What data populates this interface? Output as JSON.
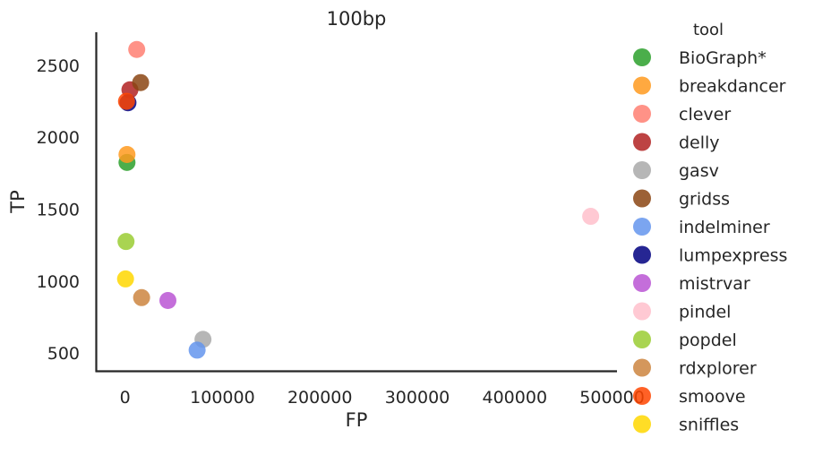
{
  "chart_data": {
    "type": "scatter",
    "title": "100bp",
    "xlabel": "FP",
    "ylabel": "TP",
    "xlim": [
      -30000,
      505000
    ],
    "ylim": [
      370,
      2730
    ],
    "xticks": [
      0,
      100000,
      200000,
      300000,
      400000,
      500000
    ],
    "xtick_labels": [
      "0",
      "100000",
      "200000",
      "300000",
      "400000",
      "500000"
    ],
    "yticks": [
      500,
      1000,
      1500,
      2000,
      2500
    ],
    "ytick_labels": [
      "500",
      "1000",
      "1500",
      "2000",
      "2500"
    ],
    "grid": false,
    "legend": {
      "title": "tool",
      "placement": "right, outside plot",
      "entries": [
        "BioGraph*",
        "breakdancer",
        "clever",
        "delly",
        "gasv",
        "gridss",
        "indelminer",
        "lumpexpress",
        "mistrvar",
        "pindel",
        "popdel",
        "rdxplorer",
        "smoove",
        "sniffles"
      ]
    },
    "series": [
      {
        "name": "BioGraph*",
        "color": "#2ca02c",
        "points": [
          {
            "x": 2000,
            "y": 1825
          }
        ]
      },
      {
        "name": "breakdancer",
        "color": "#ff9a1f",
        "points": [
          {
            "x": 2000,
            "y": 1880
          }
        ]
      },
      {
        "name": "clever",
        "color": "#ff7f72",
        "points": [
          {
            "x": 12000,
            "y": 2610
          }
        ]
      },
      {
        "name": "delly",
        "color": "#b22222",
        "points": [
          {
            "x": 5000,
            "y": 2330
          }
        ]
      },
      {
        "name": "gasv",
        "color": "#a9a9a9",
        "points": [
          {
            "x": 80000,
            "y": 595
          }
        ]
      },
      {
        "name": "gridss",
        "color": "#8b4513",
        "points": [
          {
            "x": 16000,
            "y": 2380
          }
        ]
      },
      {
        "name": "indelminer",
        "color": "#6495ed",
        "points": [
          {
            "x": 74000,
            "y": 520
          }
        ]
      },
      {
        "name": "lumpexpress",
        "color": "#000080",
        "points": [
          {
            "x": 3000,
            "y": 2240
          }
        ]
      },
      {
        "name": "mistrvar",
        "color": "#ba55d3",
        "points": [
          {
            "x": 44000,
            "y": 865
          }
        ]
      },
      {
        "name": "pindel",
        "color": "#ffc0cb",
        "points": [
          {
            "x": 478000,
            "y": 1450
          }
        ]
      },
      {
        "name": "popdel",
        "color": "#9acd32",
        "points": [
          {
            "x": 1000,
            "y": 1275
          }
        ]
      },
      {
        "name": "rdxplorer",
        "color": "#cd853f",
        "points": [
          {
            "x": 17000,
            "y": 885
          }
        ]
      },
      {
        "name": "smoove",
        "color": "#ff4500",
        "points": [
          {
            "x": 1500,
            "y": 2250
          }
        ]
      },
      {
        "name": "sniffles",
        "color": "#ffd700",
        "points": [
          {
            "x": 500,
            "y": 1015
          }
        ]
      }
    ]
  }
}
